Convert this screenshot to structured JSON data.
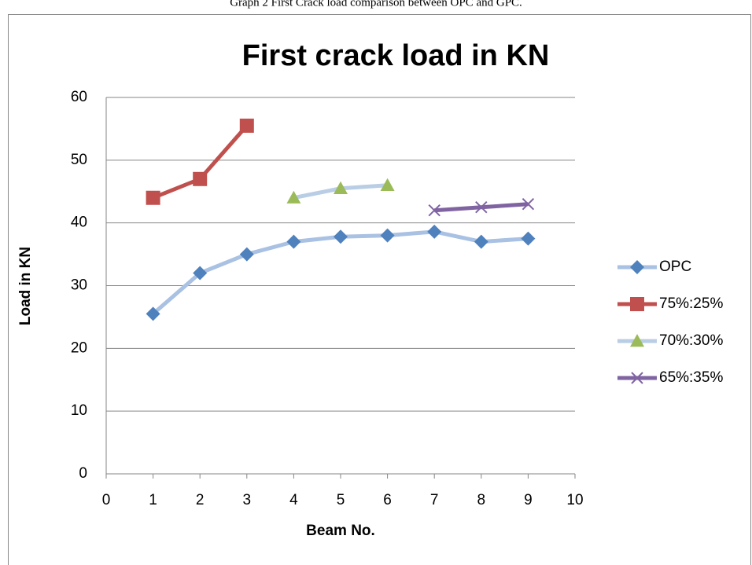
{
  "caption": "Graph 2 First Crack load comparison between OPC and GPC.",
  "chart_data": {
    "type": "line",
    "title": "First crack load in KN",
    "x_label": "Beam No.",
    "y_label": "Load in KN",
    "xlim": [
      0,
      10
    ],
    "xticks": [
      0,
      1,
      2,
      3,
      4,
      5,
      6,
      7,
      8,
      9,
      10
    ],
    "ylim": [
      0,
      60
    ],
    "yticks": [
      0,
      10,
      20,
      30,
      40,
      50,
      60
    ],
    "grid": true,
    "legend": "right",
    "series": [
      {
        "name": "OPC",
        "color": "#4f81bd",
        "line_color": "#a9c1e2",
        "marker": "diamond",
        "x": [
          1,
          2,
          3,
          4,
          5,
          6,
          7,
          8,
          9
        ],
        "values": [
          25.5,
          32,
          35,
          37,
          37.8,
          38,
          38.6,
          37,
          37.5
        ]
      },
      {
        "name": "75%:25%",
        "color": "#c0504d",
        "line_color": "#c0504d",
        "marker": "square",
        "x": [
          1,
          2,
          3
        ],
        "values": [
          44,
          47,
          55.5
        ]
      },
      {
        "name": "70%:30%",
        "color": "#9bbb59",
        "line_color": "#b9cde5",
        "marker": "triangle",
        "x": [
          4,
          5,
          6
        ],
        "values": [
          44,
          45.5,
          46
        ]
      },
      {
        "name": "65%:35%",
        "color": "#8064a2",
        "line_color": "#8064a2",
        "marker": "x",
        "x": [
          7,
          8,
          9
        ],
        "values": [
          42,
          42.5,
          43
        ]
      }
    ]
  }
}
